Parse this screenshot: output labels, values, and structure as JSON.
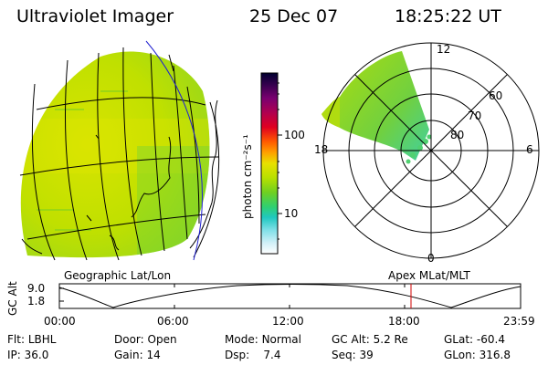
{
  "header": {
    "title": "Ultraviolet Imager",
    "date": "25 Dec 07",
    "time": "18:25:22 UT"
  },
  "colorbar": {
    "unit_label": "photon cm⁻²s⁻¹",
    "ticks": [
      "100",
      "10"
    ],
    "colors": [
      "#000030",
      "#3a0050",
      "#7a0070",
      "#b00050",
      "#e00020",
      "#ff5a00",
      "#ffa000",
      "#e8e000",
      "#b8e000",
      "#70d020",
      "#30d070",
      "#20c8c0",
      "#80e0e8",
      "#d0f0f8",
      "#ffffff"
    ]
  },
  "geo_panel": {
    "label": "Geographic Lat/Lon",
    "fill_colors": [
      "#c8e000",
      "#a8d800",
      "#d8e400"
    ]
  },
  "polar_panel": {
    "label": "Apex MLat/MLT",
    "mlt_labels": [
      "12",
      "6",
      "0",
      "18"
    ],
    "mlat_labels": [
      "60",
      "70",
      "80"
    ]
  },
  "timeline": {
    "ylabel": "GC Alt",
    "yticks": [
      "9.0",
      "1.8"
    ],
    "xticks": [
      "00:00",
      "06:00",
      "12:00",
      "18:00",
      "23:59"
    ],
    "current_marker_time": "18:25",
    "marker_color": "#d00000"
  },
  "status": {
    "row1": [
      {
        "key": "Flt:",
        "val": "LBHL"
      },
      {
        "key": "Door:",
        "val": "Open"
      },
      {
        "key": "Mode:",
        "val": "Normal"
      },
      {
        "key": "GC Alt:",
        "val": "5.2 Re"
      },
      {
        "key": "GLat:",
        "val": "-60.4"
      }
    ],
    "row2": [
      {
        "key": "IP:",
        "val": "36.0"
      },
      {
        "key": "Gain:",
        "val": "14"
      },
      {
        "key": "Dsp:",
        "val": "7.4"
      },
      {
        "key": "Seq:",
        "val": "39"
      },
      {
        "key": "GLon:",
        "val": "316.8"
      }
    ]
  }
}
